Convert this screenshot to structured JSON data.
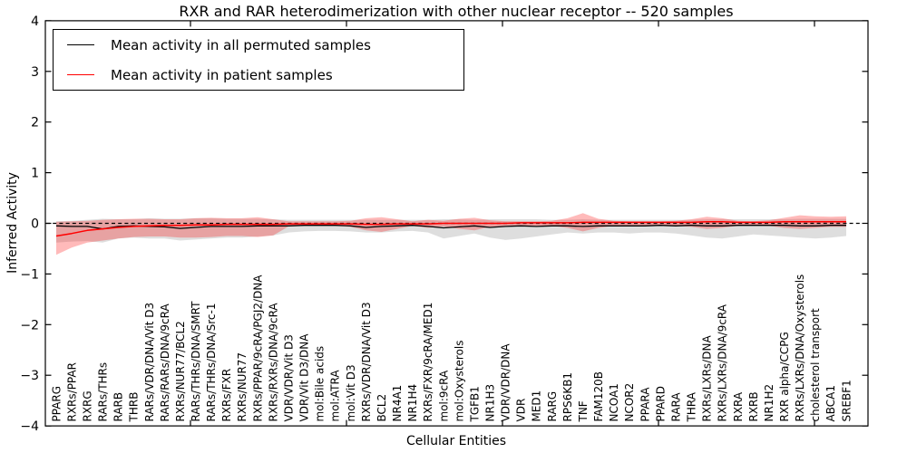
{
  "chart_data": {
    "type": "line",
    "title": "RXR and RAR heterodimerization with other nuclear receptor -- 520 samples",
    "xlabel": "Cellular Entities",
    "ylabel": "Inferred Activity",
    "ylim": [
      -4,
      4
    ],
    "yticks": [
      4,
      3,
      2,
      1,
      0,
      -1,
      -2,
      -3,
      -4
    ],
    "grid": false,
    "legend_position": "upper left",
    "sample_count_in_title": "520",
    "categories": [
      "PPARG",
      "RXRs/PPAR",
      "RXRG",
      "RARs/THRs",
      "RARB",
      "THRB",
      "RARs/VDR/DNA/Vit D3",
      "RARs/RARs/DNA/9cRA",
      "RXRs/NUR77/BCL2",
      "RARs/THRs/DNA/SMRT",
      "RARs/THRs/DNA/Src-1",
      "RXRs/FXR",
      "RXRs/NUR77",
      "RXRs/PPAR/9cRA/PGJ2/DNA",
      "RXRs/RXRs/DNA/9cRA",
      "VDR/VDR/Vit D3",
      "VDR/Vit D3/DNA",
      "mol:Bile acids",
      "mol:ATRA",
      "mol:Vit D3",
      "RXRs/VDR/DNA/Vit D3",
      "BCL2",
      "NR4A1",
      "NR1H4",
      "RXRs/FXR/9cRA/MED1",
      "mol:9cRA",
      "mol:Oxysterols",
      "TGFB1",
      "NR1H3",
      "VDR/VDR/DNA",
      "VDR",
      "MED1",
      "RARG",
      "RPS6KB1",
      "TNF",
      "FAM120B",
      "NCOA1",
      "NCOR2",
      "PPARA",
      "PPARD",
      "RARA",
      "THRA",
      "RXRs/LXRs/DNA",
      "RXRs/LXRs/DNA/9cRA",
      "RXRA",
      "RXRB",
      "NR1H2",
      "RXR alpha/CCPG",
      "RXRs/LXRs/DNA/Oxysterols",
      "cholesterol transport",
      "ABCA1",
      "SREBF1"
    ],
    "series": [
      {
        "name": "Mean activity in all permuted samples",
        "color": "#000000",
        "style": "solid",
        "band_fill": "rgba(0,0,0,0.13)",
        "values": [
          -0.05,
          -0.06,
          -0.06,
          -0.11,
          -0.06,
          -0.05,
          -0.06,
          -0.07,
          -0.1,
          -0.08,
          -0.06,
          -0.06,
          -0.06,
          -0.05,
          -0.05,
          -0.05,
          -0.04,
          -0.04,
          -0.04,
          -0.05,
          -0.08,
          -0.06,
          -0.05,
          -0.04,
          -0.06,
          -0.09,
          -0.07,
          -0.05,
          -0.08,
          -0.06,
          -0.05,
          -0.06,
          -0.05,
          -0.05,
          -0.06,
          -0.05,
          -0.05,
          -0.05,
          -0.05,
          -0.04,
          -0.05,
          -0.04,
          -0.05,
          -0.05,
          -0.04,
          -0.04,
          -0.04,
          -0.04,
          -0.05,
          -0.05,
          -0.04,
          -0.04
        ],
        "band_low": [
          -0.38,
          -0.36,
          -0.35,
          -0.38,
          -0.3,
          -0.28,
          -0.3,
          -0.3,
          -0.34,
          -0.32,
          -0.3,
          -0.28,
          -0.28,
          -0.26,
          -0.24,
          -0.18,
          -0.16,
          -0.15,
          -0.15,
          -0.16,
          -0.18,
          -0.18,
          -0.16,
          -0.15,
          -0.18,
          -0.3,
          -0.25,
          -0.2,
          -0.28,
          -0.33,
          -0.3,
          -0.26,
          -0.22,
          -0.18,
          -0.2,
          -0.18,
          -0.18,
          -0.2,
          -0.18,
          -0.18,
          -0.2,
          -0.24,
          -0.28,
          -0.3,
          -0.26,
          -0.22,
          -0.24,
          -0.26,
          -0.28,
          -0.3,
          -0.28,
          -0.25
        ],
        "band_high": [
          0.04,
          0.05,
          0.07,
          0.09,
          0.08,
          0.08,
          0.1,
          0.09,
          0.09,
          0.1,
          0.1,
          0.09,
          0.09,
          0.09,
          0.08,
          0.07,
          0.07,
          0.07,
          0.07,
          0.07,
          0.07,
          0.07,
          0.07,
          0.07,
          0.07,
          0.08,
          0.08,
          0.07,
          0.08,
          0.08,
          0.08,
          0.08,
          0.07,
          0.07,
          0.08,
          0.07,
          0.07,
          0.07,
          0.07,
          0.07,
          0.07,
          0.07,
          0.08,
          0.08,
          0.08,
          0.08,
          0.08,
          0.08,
          0.09,
          0.09,
          0.09,
          0.09
        ]
      },
      {
        "name": "Mean activity in patient samples",
        "color": "#ff0000",
        "style": "solid",
        "band_fill": "rgba(255,0,0,0.27)",
        "values": [
          -0.25,
          -0.2,
          -0.14,
          -0.11,
          -0.08,
          -0.06,
          -0.05,
          -0.04,
          -0.04,
          -0.03,
          -0.03,
          -0.02,
          -0.02,
          -0.02,
          -0.02,
          -0.01,
          -0.01,
          -0.01,
          -0.01,
          -0.01,
          -0.02,
          -0.02,
          -0.01,
          -0.01,
          -0.01,
          0.0,
          0.0,
          0.0,
          0.0,
          0.0,
          0.01,
          0.01,
          0.01,
          0.01,
          0.02,
          0.02,
          0.02,
          0.02,
          0.02,
          0.02,
          0.02,
          0.02,
          0.03,
          0.03,
          0.02,
          0.02,
          0.02,
          0.03,
          0.03,
          0.03,
          0.03,
          0.03
        ],
        "band_low": [
          -0.62,
          -0.48,
          -0.38,
          -0.34,
          -0.3,
          -0.27,
          -0.26,
          -0.26,
          -0.28,
          -0.28,
          -0.27,
          -0.25,
          -0.25,
          -0.27,
          -0.24,
          -0.06,
          -0.05,
          -0.05,
          -0.05,
          -0.07,
          -0.14,
          -0.17,
          -0.11,
          -0.05,
          -0.09,
          -0.06,
          -0.11,
          -0.14,
          -0.07,
          -0.05,
          -0.04,
          -0.05,
          -0.05,
          -0.09,
          -0.16,
          -0.09,
          -0.05,
          -0.04,
          -0.04,
          -0.04,
          -0.05,
          -0.07,
          -0.11,
          -0.09,
          -0.05,
          -0.04,
          -0.05,
          -0.09,
          -0.11,
          -0.09,
          -0.07,
          -0.07
        ],
        "band_high": [
          0.03,
          0.04,
          0.05,
          0.07,
          0.08,
          0.09,
          0.09,
          0.08,
          0.08,
          0.1,
          0.11,
          0.1,
          0.1,
          0.12,
          0.08,
          0.04,
          0.04,
          0.04,
          0.04,
          0.05,
          0.1,
          0.12,
          0.08,
          0.04,
          0.07,
          0.05,
          0.09,
          0.11,
          0.06,
          0.04,
          0.04,
          0.04,
          0.05,
          0.1,
          0.2,
          0.09,
          0.05,
          0.04,
          0.04,
          0.04,
          0.05,
          0.08,
          0.13,
          0.1,
          0.05,
          0.04,
          0.06,
          0.11,
          0.16,
          0.14,
          0.13,
          0.14
        ]
      }
    ],
    "reference_line": {
      "y": 0,
      "color": "#000000",
      "style": "dashed"
    }
  }
}
